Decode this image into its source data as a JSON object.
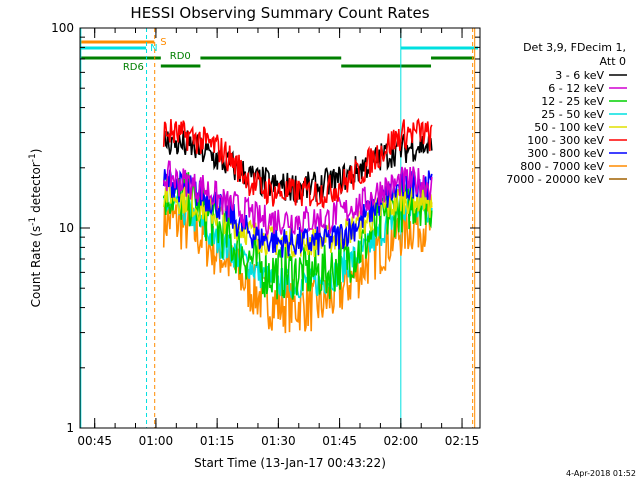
{
  "chart_data": {
    "type": "line",
    "title": "HESSI Observing Summary Count Rates",
    "xlabel": "Start Time (13-Jan-17 00:43:22)",
    "ylabel": "Count Rate (s",
    "ylabel_sup": "-1",
    "ylabel_tail": " detector",
    "ylabel_sup2": "-1",
    "ylabel_close": ")",
    "y_scale": "log",
    "ylim": [
      1,
      100
    ],
    "xlim_minutes": [
      -2,
      96
    ],
    "x_ticks": [
      {
        "label": "00:45",
        "minutes": 1.6
      },
      {
        "label": "01:00",
        "minutes": 16.6
      },
      {
        "label": "01:15",
        "minutes": 31.6
      },
      {
        "label": "01:30",
        "minutes": 46.6
      },
      {
        "label": "01:45",
        "minutes": 61.6
      },
      {
        "label": "02:00",
        "minutes": 76.6
      },
      {
        "label": "02:15",
        "minutes": 91.6
      }
    ],
    "y_ticks": [
      {
        "label": "1",
        "value": 1
      },
      {
        "label": "10",
        "value": 10
      },
      {
        "label": "100",
        "value": 100
      }
    ],
    "legend_header": [
      "Det 3,9, FDecim 1,",
      "Att 0"
    ],
    "series": [
      {
        "name": "3 - 6 keV",
        "color": "#000000",
        "values": [
          27,
          27,
          26,
          26,
          25,
          24,
          23,
          22,
          21,
          20,
          19,
          18,
          17,
          17,
          16,
          16,
          16,
          16,
          16,
          16,
          16,
          17,
          17,
          18,
          19,
          20,
          21,
          22,
          23,
          24,
          25,
          25,
          26,
          26,
          25
        ]
      },
      {
        "name": "6 - 12 keV",
        "color": "#d000d0",
        "values": [
          18,
          18,
          17,
          17,
          16,
          16,
          15,
          14,
          13,
          13,
          12,
          12,
          11,
          11,
          11,
          11,
          11,
          11,
          11,
          11,
          11,
          11,
          12,
          12,
          13,
          13,
          14,
          15,
          16,
          16,
          17,
          17,
          17,
          17,
          16
        ]
      },
      {
        "name": "12 - 25 keV",
        "color": "#00d000",
        "values": [
          15,
          15,
          14,
          14,
          13,
          12,
          11,
          10,
          9,
          8,
          7.5,
          7,
          6.5,
          6,
          6,
          6,
          6,
          6,
          6,
          6,
          6,
          6,
          6.5,
          7,
          7.5,
          8,
          9,
          10,
          11,
          12,
          13,
          13,
          14,
          14,
          13
        ]
      },
      {
        "name": "25 - 50 keV",
        "color": "#00e0e0",
        "values": [
          13,
          13,
          12,
          12,
          11,
          10,
          9,
          8.5,
          8,
          7.5,
          7,
          6.5,
          6,
          5.6,
          5.4,
          5.3,
          5.3,
          5.3,
          5.3,
          5.3,
          5.4,
          5.6,
          6,
          6.5,
          7,
          7.5,
          8,
          9,
          10,
          11,
          12,
          12,
          13,
          13,
          12
        ]
      },
      {
        "name": "50 - 100 keV",
        "color": "#e0e000",
        "values": [
          15,
          15,
          14,
          14,
          13,
          12.5,
          12,
          11.5,
          11,
          10.5,
          10,
          9.5,
          9,
          8.8,
          8.6,
          8.5,
          8.5,
          8.5,
          8.5,
          8.5,
          8.6,
          8.8,
          9,
          9.5,
          10,
          10.5,
          11,
          12,
          12.5,
          13,
          14,
          14,
          14,
          14,
          13
        ]
      },
      {
        "name": "100 - 300 keV",
        "color": "#ff0000",
        "values": [
          30,
          30,
          29,
          29,
          28,
          27,
          26,
          25,
          23,
          21,
          19,
          17,
          16,
          15.5,
          15,
          15,
          15,
          15,
          15,
          15,
          15,
          15.5,
          16,
          17,
          18,
          19,
          21,
          23,
          25,
          27,
          29,
          30,
          30,
          30,
          28
        ]
      },
      {
        "name": "300 - 800 keV",
        "color": "#0000ff",
        "values": [
          17,
          17,
          16,
          16,
          15,
          14.5,
          14,
          13,
          12,
          11,
          10,
          9.5,
          9,
          8.8,
          8.6,
          8.5,
          8.5,
          8.5,
          8.5,
          8.5,
          8.6,
          8.8,
          9,
          9.5,
          10,
          11,
          12,
          13,
          14,
          15,
          16,
          16,
          17,
          17,
          16
        ]
      },
      {
        "name": "800 - 7000 keV",
        "color": "#ff8c00",
        "values": [
          11,
          11,
          10.5,
          10,
          9.5,
          9,
          8,
          7.5,
          7,
          6.2,
          5.6,
          5,
          4.6,
          4.3,
          4.2,
          4.1,
          4.1,
          4.1,
          4.1,
          4.1,
          4.2,
          4.4,
          4.7,
          5.1,
          5.6,
          6.2,
          7,
          7.6,
          8.3,
          9,
          9.6,
          10,
          10.5,
          10.5,
          10
        ]
      },
      {
        "name": "7000 - 20000 keV",
        "color": "#a06000",
        "values": []
      }
    ],
    "data_start_minutes": 18.5,
    "data_end_minutes": 84.2,
    "state_bars": [
      {
        "label": "S",
        "color": "#ff8c00",
        "label_color": "#ff8c00"
      },
      {
        "label": "N",
        "color": "#00e0e0",
        "label_color": "#00e0e0"
      },
      {
        "label": "RD0",
        "color": "#008000",
        "label_color": "#008000"
      },
      {
        "label": "RD6",
        "color": "#008000",
        "label_color": "#008000"
      }
    ],
    "colors": {
      "saa_bar": "#ff8c00",
      "night_bar": "#00e0e0",
      "decim_bar": "#008000"
    }
  },
  "stamp": "4-Apr-2018 01:52"
}
